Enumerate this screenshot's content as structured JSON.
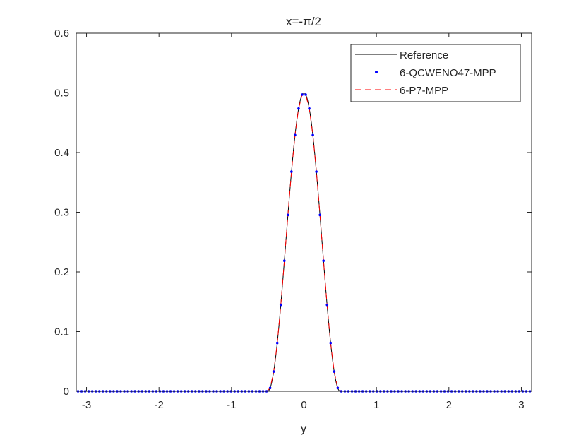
{
  "chart_data": {
    "type": "line",
    "title": "x=-π/2",
    "xlabel": "y",
    "ylabel": "",
    "xlim": [
      -3.14159,
      3.14159
    ],
    "ylim": [
      0,
      0.6
    ],
    "xticks": [
      -3,
      -2,
      -1,
      0,
      1,
      2,
      3
    ],
    "xtick_labels": [
      "-3",
      "-2",
      "-1",
      "0",
      "1",
      "2",
      "3"
    ],
    "yticks": [
      0,
      0.1,
      0.2,
      0.3,
      0.4,
      0.5,
      0.6
    ],
    "ytick_labels": [
      "0",
      "0.1",
      "0.2",
      "0.3",
      "0.4",
      "0.5",
      "0.6"
    ],
    "grid": false,
    "legend_position": "top-right",
    "profile": {
      "shape": "cosine-squared bump",
      "peak_y": 0.5,
      "center_x": 0,
      "support_half_width": 0.5,
      "baseline": 0
    },
    "sample_count": 128,
    "series": [
      {
        "name": "Reference",
        "style": "solid-line",
        "color": "#000000"
      },
      {
        "name": "6-QCWENO47-MPP",
        "style": "dots",
        "color": "#0000ff"
      },
      {
        "name": "6-P7-MPP",
        "style": "dashed-line",
        "color": "#ff0000"
      }
    ]
  }
}
